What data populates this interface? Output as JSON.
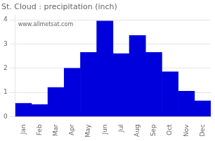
{
  "chart_data": {
    "type": "bar",
    "title": "St. Cloud : precipitation (inch)",
    "categories": [
      "Jan",
      "Feb",
      "Mar",
      "Apr",
      "May",
      "Jun",
      "Jul",
      "Aug",
      "Sep",
      "Oct",
      "Nov",
      "Dec"
    ],
    "values": [
      0.55,
      0.5,
      1.2,
      2.0,
      2.65,
      3.95,
      2.6,
      3.35,
      2.65,
      1.85,
      1.05,
      0.65
    ],
    "color": "#0000DD",
    "ylim": [
      0,
      4.2
    ],
    "yticks": [
      0,
      1,
      2,
      3,
      4
    ],
    "grid": true,
    "annotations": [
      "www.allmetsat.com"
    ]
  }
}
